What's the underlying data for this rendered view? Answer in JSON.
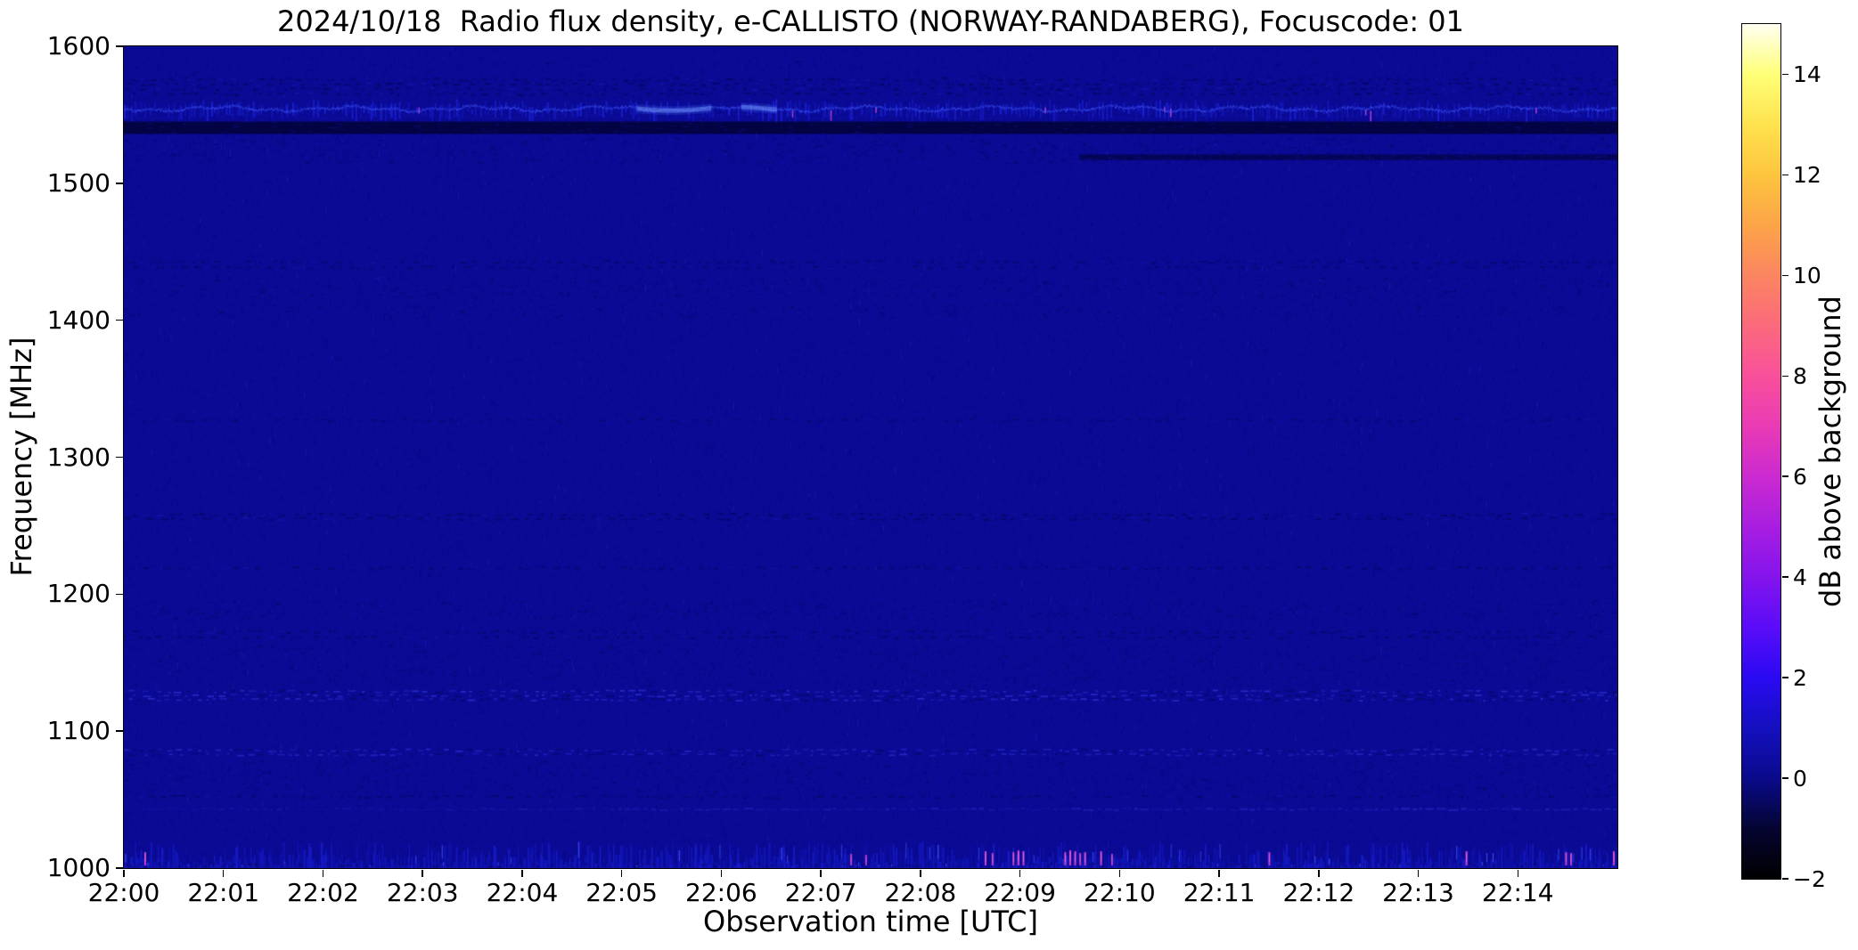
{
  "chart_data": {
    "type": "heatmap",
    "title": "2024/10/18  Radio flux density, e-CALLISTO (NORWAY-RANDABERG), Focuscode: 01",
    "xlabel": "Observation time [UTC]",
    "ylabel": "Frequency [MHz]",
    "x_ticks": [
      "22:00",
      "22:01",
      "22:02",
      "22:03",
      "22:04",
      "22:05",
      "22:06",
      "22:07",
      "22:08",
      "22:09",
      "22:10",
      "22:11",
      "22:12",
      "22:13",
      "22:14"
    ],
    "x_range_minutes": [
      0,
      15
    ],
    "ylim": [
      1000,
      1600
    ],
    "y_ticks": [
      1600,
      1500,
      1400,
      1300,
      1200,
      1100,
      1000
    ],
    "grid": false,
    "colorbar": {
      "label": "dB above background",
      "range": [
        -2,
        15
      ],
      "ticks": [
        {
          "v": 14,
          "label": "14"
        },
        {
          "v": 12,
          "label": "12"
        },
        {
          "v": 10,
          "label": "10"
        },
        {
          "v": 8,
          "label": "8"
        },
        {
          "v": 6,
          "label": "6"
        },
        {
          "v": 4,
          "label": "4"
        },
        {
          "v": 2,
          "label": "2"
        },
        {
          "v": 0,
          "label": "0"
        },
        {
          "v": -2,
          "label": "−2"
        }
      ],
      "gradient_stops": [
        {
          "v": -2,
          "color": "#000000"
        },
        {
          "v": -1,
          "color": "#050532"
        },
        {
          "v": 0,
          "color": "#0a0a8c"
        },
        {
          "v": 1,
          "color": "#1410bf"
        },
        {
          "v": 2,
          "color": "#2a0af2"
        },
        {
          "v": 3,
          "color": "#5a0cf8"
        },
        {
          "v": 4,
          "color": "#8414ec"
        },
        {
          "v": 5,
          "color": "#a81ee0"
        },
        {
          "v": 6,
          "color": "#cb2ad0"
        },
        {
          "v": 7,
          "color": "#e93bb4"
        },
        {
          "v": 8,
          "color": "#f8509b"
        },
        {
          "v": 9,
          "color": "#fb6a7c"
        },
        {
          "v": 10,
          "color": "#fb8560"
        },
        {
          "v": 11,
          "color": "#fca448"
        },
        {
          "v": 12,
          "color": "#fdc53e"
        },
        {
          "v": 13,
          "color": "#fee24e"
        },
        {
          "v": 14,
          "color": "#ffff78"
        },
        {
          "v": 15,
          "color": "#fffff2"
        }
      ]
    },
    "palette": {
      "base": "#0a0a94"
    },
    "features": [
      {
        "kind": "dotted_rows",
        "f_top": 1578,
        "f_bot": 1564,
        "rows": 4,
        "dark": true,
        "strength": 0.55
      },
      {
        "kind": "stripe_texture",
        "f_top": 1592,
        "f_bot": 1566,
        "strength": 0.22
      },
      {
        "kind": "fence",
        "f_center": 1555,
        "strength": 0.9,
        "glows": [
          {
            "t0": 5.15,
            "t1": 5.9
          },
          {
            "t0": 6.2,
            "t1": 6.55
          }
        ]
      },
      {
        "kind": "dark_band",
        "f_top": 1545,
        "f_bot": 1536,
        "strength": 0.8
      },
      {
        "kind": "stripe_texture",
        "f_top": 1534,
        "f_bot": 1515,
        "strength": 0.55
      },
      {
        "kind": "dark_band",
        "f_top": 1521,
        "f_bot": 1517,
        "t0": 9.6,
        "t1": 15,
        "strength": 0.45
      },
      {
        "kind": "dotted_rows",
        "f_top": 1445,
        "f_bot": 1437,
        "rows": 2,
        "dark": true,
        "strength": 0.3
      },
      {
        "kind": "stripe_texture",
        "f_top": 1432,
        "f_bot": 1417,
        "strength": 0.5
      },
      {
        "kind": "stripe_texture",
        "f_top": 1412,
        "f_bot": 1402,
        "strength": 0.45
      },
      {
        "kind": "dotted_rows",
        "f_top": 1330,
        "f_bot": 1325,
        "rows": 1,
        "dark": true,
        "strength": 0.2
      },
      {
        "kind": "dotted_rows",
        "f_top": 1260,
        "f_bot": 1254,
        "rows": 2,
        "dark": true,
        "strength": 0.55
      },
      {
        "kind": "dotted_rows",
        "f_top": 1222,
        "f_bot": 1217,
        "rows": 1,
        "dark": true,
        "strength": 0.4
      },
      {
        "kind": "stripe_texture",
        "f_top": 1196,
        "f_bot": 1182,
        "strength": 0.5
      },
      {
        "kind": "dotted_rows",
        "f_top": 1175,
        "f_bot": 1167,
        "rows": 2,
        "dark": true,
        "strength": 0.4
      },
      {
        "kind": "stripe_texture",
        "f_top": 1165,
        "f_bot": 1133,
        "strength": 0.35
      },
      {
        "kind": "light_dashes",
        "f_top": 1131,
        "f_bot": 1122,
        "rows": 3,
        "strength": 0.7
      },
      {
        "kind": "light_dashes",
        "f_top": 1088,
        "f_bot": 1082,
        "rows": 2,
        "strength": 0.5
      },
      {
        "kind": "stripe_texture",
        "f_top": 1079,
        "f_bot": 1056,
        "strength": 0.4
      },
      {
        "kind": "dotted_rows",
        "f_top": 1055,
        "f_bot": 1050,
        "rows": 1,
        "dark": true,
        "strength": 0.4
      },
      {
        "kind": "light_row",
        "f": 1043,
        "strength": 0.6,
        "grow": true
      },
      {
        "kind": "bottom_noise",
        "f_top": 1018,
        "strength": 0.9
      }
    ],
    "events": [
      {
        "t": 0.21,
        "s": 0.8
      },
      {
        "t": 7.3,
        "s": 0.6
      },
      {
        "t": 7.45,
        "s": 0.5
      },
      {
        "t": 8.65,
        "s": 0.9
      },
      {
        "t": 8.72,
        "s": 0.7
      },
      {
        "t": 8.93,
        "s": 0.8
      },
      {
        "t": 8.98,
        "s": 1.0
      },
      {
        "t": 9.03,
        "s": 0.9
      },
      {
        "t": 9.45,
        "s": 0.8
      },
      {
        "t": 9.5,
        "s": 1.0
      },
      {
        "t": 9.55,
        "s": 0.9
      },
      {
        "t": 9.6,
        "s": 0.7
      },
      {
        "t": 9.65,
        "s": 0.8
      },
      {
        "t": 9.81,
        "s": 0.9
      },
      {
        "t": 9.92,
        "s": 0.6
      },
      {
        "t": 11.5,
        "s": 0.8
      },
      {
        "t": 13.48,
        "s": 0.9
      },
      {
        "t": 14.48,
        "s": 0.8
      },
      {
        "t": 14.53,
        "s": 0.7
      },
      {
        "t": 14.96,
        "s": 0.9
      }
    ]
  }
}
